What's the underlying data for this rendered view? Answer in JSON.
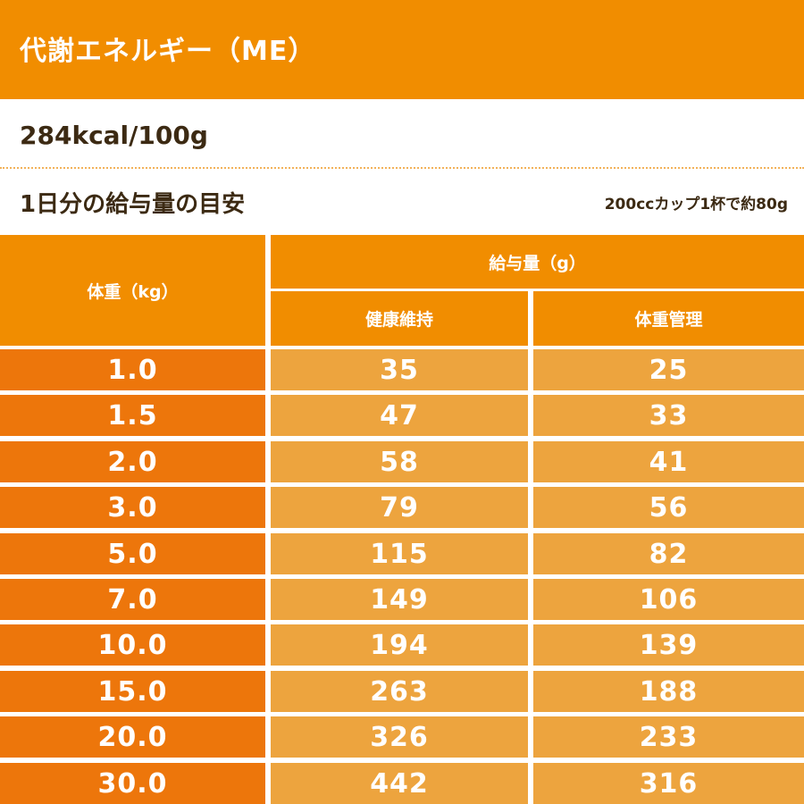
{
  "header": {
    "title": "代謝エネルギー（ME）",
    "energy": "284kcal/100g"
  },
  "guide": {
    "title": "1日分の給与量の目安",
    "note": "200ccカップ1杯で約80g"
  },
  "table": {
    "weight_header": "体重（kg）",
    "amount_header": "給与量（g）",
    "maintenance_header": "健康維持",
    "management_header": "体重管理",
    "rows": [
      {
        "weight": "1.0",
        "maintenance": "35",
        "management": "25"
      },
      {
        "weight": "1.5",
        "maintenance": "47",
        "management": "33"
      },
      {
        "weight": "2.0",
        "maintenance": "58",
        "management": "41"
      },
      {
        "weight": "3.0",
        "maintenance": "79",
        "management": "56"
      },
      {
        "weight": "5.0",
        "maintenance": "115",
        "management": "82"
      },
      {
        "weight": "7.0",
        "maintenance": "149",
        "management": "106"
      },
      {
        "weight": "10.0",
        "maintenance": "194",
        "management": "139"
      },
      {
        "weight": "15.0",
        "maintenance": "263",
        "management": "188"
      },
      {
        "weight": "20.0",
        "maintenance": "326",
        "management": "233"
      },
      {
        "weight": "30.0",
        "maintenance": "442",
        "management": "316"
      }
    ]
  },
  "colors": {
    "header_orange": "#f18d00",
    "weight_cell": "#ed760b",
    "amount_cell": "#eda43e",
    "text_dark": "#3c2a13"
  }
}
